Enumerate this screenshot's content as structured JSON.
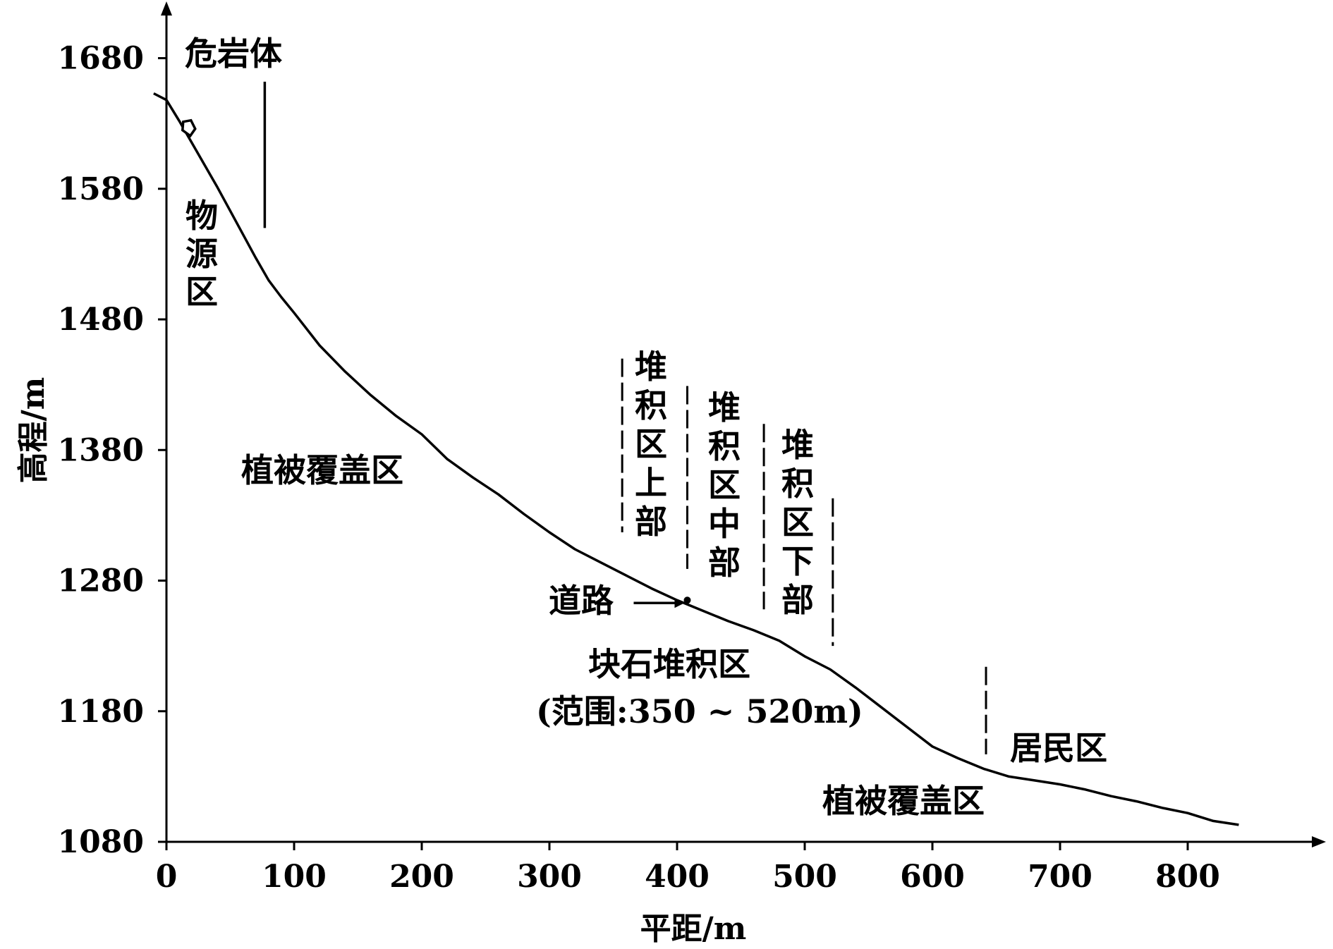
{
  "chart_data": {
    "type": "line",
    "xlabel": "平距/m",
    "ylabel": "高程/m",
    "xlim": [
      0,
      900
    ],
    "ylim": [
      1080,
      1720
    ],
    "x_ticks": [
      "0",
      "100",
      "200",
      "300",
      "400",
      "500",
      "600",
      "700",
      "800"
    ],
    "x_tick_values": [
      0,
      100,
      200,
      300,
      400,
      500,
      600,
      700,
      800
    ],
    "y_ticks": [
      "1080",
      "1180",
      "1280",
      "1380",
      "1480",
      "1580",
      "1680"
    ],
    "y_tick_values": [
      1080,
      1180,
      1280,
      1380,
      1480,
      1580,
      1680
    ],
    "series": [
      {
        "x": [
          -10,
          0,
          10,
          20,
          30,
          40,
          50,
          60,
          70,
          80,
          90,
          100,
          120,
          140,
          160,
          180,
          200,
          220,
          240,
          260,
          280,
          300,
          320,
          340,
          360,
          380,
          400,
          420,
          440,
          460,
          480,
          500,
          520,
          540,
          560,
          580,
          600,
          620,
          640,
          660,
          680,
          700,
          720,
          740,
          760,
          780,
          800,
          820,
          840
        ],
        "y": [
          1653,
          1648,
          1632,
          1615,
          1598,
          1581,
          1563,
          1545,
          1527,
          1510,
          1497,
          1485,
          1460,
          1440,
          1422,
          1406,
          1392,
          1373,
          1359,
          1346,
          1331,
          1317,
          1304,
          1294,
          1284,
          1274,
          1265,
          1257,
          1249,
          1242,
          1234,
          1222,
          1212,
          1198,
          1183,
          1168,
          1153,
          1144,
          1136,
          1130,
          1127,
          1124,
          1120,
          1115,
          1111,
          1106,
          1102,
          1096,
          1093
        ]
      }
    ],
    "boundaries": [
      {
        "x": 77,
        "y_range": [
          1550,
          1662
        ],
        "style": "solid"
      },
      {
        "x": 357,
        "y_range": [
          1317,
          1450
        ],
        "style": "dashed"
      },
      {
        "x": 408,
        "y_range": [
          1289,
          1429
        ],
        "style": "dashed"
      },
      {
        "x": 468,
        "y_range": [
          1258,
          1400
        ],
        "style": "dashed"
      },
      {
        "x": 522,
        "y_range": [
          1230,
          1343
        ],
        "style": "dashed"
      },
      {
        "x": 642,
        "y_range": [
          1147,
          1214
        ],
        "style": "dashed"
      }
    ],
    "source_marker": {
      "x": 17,
      "y": 1627
    },
    "road_point": {
      "x": 408,
      "y": 1265
    },
    "annotations": {
      "dangerous_rock": "危岩体",
      "source_zone": [
        "物",
        "源",
        "区"
      ],
      "vegetation_1": "植被覆盖区",
      "road": "道路",
      "accum_upper": [
        "堆",
        "积",
        "区",
        "上",
        "部"
      ],
      "accum_middle": [
        "堆",
        "积",
        "区",
        "中",
        "部"
      ],
      "accum_lower": [
        "堆",
        "积",
        "区",
        "下",
        "部"
      ],
      "boulder_zone": "块石堆积区",
      "boulder_range": "(范围:350 ~ 520m)",
      "residential": "居民区",
      "vegetation_2": "植被覆盖区"
    }
  }
}
